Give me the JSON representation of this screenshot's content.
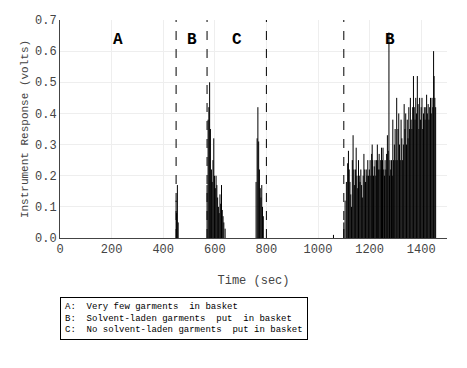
{
  "chart_data": {
    "type": "stem",
    "xlabel": "Time (sec)",
    "ylabel": "Instrument Response (volts)",
    "xlim": [
      0,
      1500
    ],
    "ylim": [
      0.0,
      0.7
    ],
    "xticks": [
      0,
      200,
      400,
      600,
      800,
      1000,
      1200,
      1400
    ],
    "yticks": [
      {
        "value": 0.0,
        "label": "0.0"
      },
      0.1,
      0.2,
      0.3,
      0.4,
      0.5,
      0.6,
      0.7
    ],
    "color": "#000000",
    "x": [
      450,
      452,
      455,
      458,
      570,
      574,
      577,
      580,
      583,
      587,
      590,
      593,
      596,
      599,
      602,
      605,
      608,
      611,
      614,
      617,
      620,
      623,
      626,
      629,
      632,
      635,
      640,
      760,
      764,
      767,
      770,
      773,
      776,
      779,
      782,
      785,
      788,
      1060,
      1100,
      1105,
      1110,
      1115,
      1118,
      1121,
      1124,
      1127,
      1130,
      1133,
      1136,
      1139,
      1142,
      1145,
      1148,
      1151,
      1154,
      1157,
      1160,
      1163,
      1166,
      1169,
      1172,
      1175,
      1178,
      1181,
      1184,
      1187,
      1190,
      1193,
      1196,
      1199,
      1202,
      1205,
      1208,
      1210,
      1212,
      1215,
      1218,
      1221,
      1224,
      1227,
      1230,
      1232,
      1234,
      1237,
      1240,
      1243,
      1246,
      1248,
      1250,
      1252,
      1255,
      1258,
      1260,
      1263,
      1266,
      1269,
      1272,
      1275,
      1277,
      1279,
      1282,
      1285,
      1288,
      1290,
      1293,
      1296,
      1299,
      1302,
      1305,
      1307,
      1310,
      1313,
      1316,
      1319,
      1322,
      1325,
      1328,
      1331,
      1334,
      1337,
      1340,
      1343,
      1346,
      1349,
      1352,
      1355,
      1358,
      1361,
      1364,
      1367,
      1370,
      1373,
      1376,
      1379,
      1382,
      1385,
      1388,
      1391,
      1394,
      1397,
      1400,
      1403,
      1406,
      1409,
      1412,
      1415,
      1418,
      1421,
      1424,
      1427,
      1430,
      1433,
      1436,
      1439,
      1442,
      1445,
      1448,
      1450,
      1453,
      1456
    ],
    "values": [
      0.12,
      0.08,
      0.17,
      0.05,
      0.17,
      0.38,
      0.42,
      0.5,
      0.35,
      0.22,
      0.18,
      0.25,
      0.32,
      0.2,
      0.16,
      0.2,
      0.17,
      0.13,
      0.1,
      0.08,
      0.14,
      0.11,
      0.17,
      0.09,
      0.07,
      0.05,
      0.03,
      0.18,
      0.32,
      0.42,
      0.31,
      0.22,
      0.16,
      0.13,
      0.17,
      0.1,
      0.07,
      0.01,
      0.05,
      0.12,
      0.18,
      0.24,
      0.28,
      0.22,
      0.18,
      0.14,
      0.1,
      0.25,
      0.33,
      0.22,
      0.17,
      0.22,
      0.29,
      0.2,
      0.16,
      0.25,
      0.2,
      0.18,
      0.22,
      0.17,
      0.13,
      0.2,
      0.27,
      0.22,
      0.18,
      0.22,
      0.2,
      0.25,
      0.2,
      0.22,
      0.25,
      0.2,
      0.27,
      0.3,
      0.25,
      0.2,
      0.23,
      0.25,
      0.2,
      0.25,
      0.3,
      0.25,
      0.22,
      0.27,
      0.22,
      0.25,
      0.29,
      0.22,
      0.25,
      0.29,
      0.22,
      0.2,
      0.25,
      0.22,
      0.27,
      0.33,
      0.28,
      0.66,
      0.2,
      0.25,
      0.22,
      0.25,
      0.2,
      0.38,
      0.25,
      0.3,
      0.35,
      0.25,
      0.45,
      0.25,
      0.35,
      0.4,
      0.3,
      0.25,
      0.38,
      0.32,
      0.25,
      0.3,
      0.43,
      0.35,
      0.4,
      0.3,
      0.38,
      0.32,
      0.42,
      0.35,
      0.45,
      0.38,
      0.35,
      0.42,
      0.52,
      0.42,
      0.38,
      0.45,
      0.4,
      0.52,
      0.43,
      0.35,
      0.45,
      0.38,
      0.42,
      0.45,
      0.35,
      0.4,
      0.42,
      0.38,
      0.42,
      0.46,
      0.4,
      0.43,
      0.38,
      0.42,
      0.45,
      0.4,
      0.45,
      0.42,
      0.6,
      0.52,
      0.45,
      0.42
    ],
    "vlines": {
      "x": [
        450,
        570,
        800,
        1100
      ],
      "line_style": "dashed",
      "color": "#000000"
    },
    "annotations": [
      {
        "text": "A",
        "x": 225,
        "y": 0.635
      },
      {
        "text": "B",
        "x": 510,
        "y": 0.635
      },
      {
        "text": "C",
        "x": 685,
        "y": 0.635
      },
      {
        "text": "B",
        "x": 1280,
        "y": 0.635
      }
    ],
    "legend_text": [
      "A:  Very few garments  in basket",
      "B:  Solvent-laden garments  put  in basket",
      "C:  No solvent-laden garments  put in basket"
    ]
  }
}
